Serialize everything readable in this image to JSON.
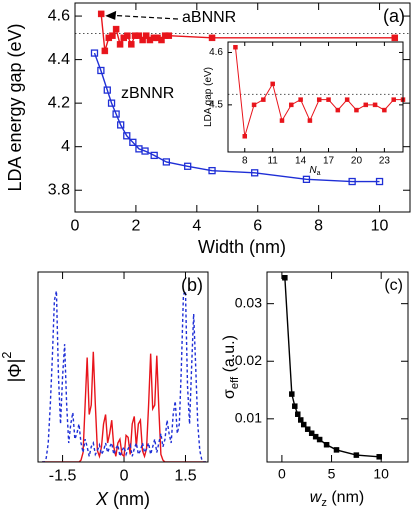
{
  "chart_data": [
    {
      "type": "line",
      "panel_label": "(a)",
      "x_label": [
        {
          "text": "Width (nm)"
        }
      ],
      "y_label": [
        {
          "text": "LDA energy gap (eV)"
        }
      ],
      "xlim": [
        0,
        11
      ],
      "ylim": [
        3.7,
        4.66
      ],
      "xticks": [
        0,
        2,
        4,
        6,
        8,
        10
      ],
      "yticks": [
        3.8,
        {
          "value": 4,
          "label": "4"
        },
        4.2,
        4.4,
        4.6
      ],
      "reference_line": 4.52,
      "annotations": [
        "aBNNR",
        "zBNNR"
      ],
      "series": [
        {
          "name": "aBNNR",
          "color": "#e8141b",
          "marker": "square",
          "x": [
            0.86,
            0.98,
            1.11,
            1.23,
            1.35,
            1.48,
            1.6,
            1.72,
            1.85,
            1.97,
            2.1,
            2.22,
            2.34,
            2.46,
            2.59,
            2.71,
            2.84,
            2.96,
            3.08,
            4.5,
            10.5
          ],
          "values": [
            4.61,
            4.44,
            4.5,
            4.51,
            4.54,
            4.47,
            4.5,
            4.51,
            4.47,
            4.51,
            4.51,
            4.49,
            4.51,
            4.49,
            4.5,
            4.5,
            4.49,
            4.51,
            4.51,
            4.5,
            4.5
          ]
        },
        {
          "name": "zBNNR",
          "color": "#1f2fd6",
          "marker": "square-open",
          "x": [
            0.64,
            0.85,
            1.06,
            1.2,
            1.35,
            1.5,
            1.7,
            1.9,
            2.1,
            2.3,
            2.6,
            3.0,
            3.7,
            4.5,
            5.9,
            7.6,
            9.1,
            10.0
          ],
          "values": [
            4.43,
            4.35,
            4.26,
            4.2,
            4.15,
            4.1,
            4.05,
            4.02,
            3.99,
            3.98,
            3.96,
            3.93,
            3.91,
            3.89,
            3.88,
            3.85,
            3.84,
            3.84
          ]
        }
      ]
    },
    {
      "type": "line",
      "x_label": [
        {
          "text": "N",
          "style": "italic"
        },
        {
          "text": "a",
          "style": "sub"
        }
      ],
      "y_label": [
        {
          "text": "LDA gap (eV)"
        }
      ],
      "xlim": [
        6.2,
        25
      ],
      "ylim": [
        4.41,
        4.62
      ],
      "xticks": [
        8,
        11,
        14,
        17,
        20,
        23
      ],
      "yticks": [
        4.5,
        4.6
      ],
      "reference_line": 4.52,
      "series": [
        {
          "name": "aBNNR",
          "color": "#e8141b",
          "marker": "square",
          "x": [
            7,
            8,
            9,
            10,
            11,
            12,
            13,
            14,
            15,
            16,
            17,
            18,
            19,
            20,
            21,
            22,
            23,
            24,
            25
          ],
          "values": [
            4.61,
            4.44,
            4.5,
            4.51,
            4.54,
            4.47,
            4.5,
            4.51,
            4.47,
            4.51,
            4.51,
            4.49,
            4.51,
            4.49,
            4.5,
            4.5,
            4.49,
            4.51,
            4.51
          ]
        }
      ]
    },
    {
      "type": "line",
      "panel_label": "(b)",
      "x_label": [
        {
          "text": "X",
          "style": "italic"
        },
        {
          "text": " (nm)"
        }
      ],
      "y_label": [
        {
          "text": "|Φ|"
        },
        {
          "text": "2",
          "style": "sup"
        }
      ],
      "xlim": [
        -2.1,
        2.05
      ],
      "ylim": [
        0,
        1
      ],
      "xticks": [
        -1.5,
        0,
        1.5
      ],
      "yticks": [],
      "series": [
        {
          "color": "#e8141b",
          "marker": "none",
          "x": [
            -2.0,
            -1.95,
            -1.9,
            -1.85,
            -1.8,
            -1.75,
            -1.7,
            -1.65,
            -1.6,
            -1.55,
            -1.5,
            -1.45,
            -1.4,
            -1.35,
            -1.3,
            -1.25,
            -1.2,
            -1.15,
            -1.1,
            -1.05,
            -1.0,
            -0.95,
            -0.9,
            -0.85,
            -0.8,
            -0.75,
            -0.7,
            -0.65,
            -0.6,
            -0.55,
            -0.5,
            -0.45,
            -0.4,
            -0.35,
            -0.3,
            -0.25,
            -0.2,
            -0.15,
            -0.1,
            -0.05,
            0.0,
            0.05,
            0.1,
            0.15,
            0.2,
            0.25,
            0.3,
            0.35,
            0.4,
            0.45,
            0.5,
            0.55,
            0.6,
            0.65,
            0.7,
            0.75,
            0.8,
            0.85,
            0.9,
            0.95,
            1.0,
            1.05,
            1.1,
            1.15,
            1.2,
            1.25,
            1.3,
            1.35,
            1.4,
            1.45,
            1.5,
            1.55,
            1.6,
            1.65,
            1.7,
            1.75,
            1.8,
            1.85,
            1.9,
            1.95,
            2.0
          ],
          "values": [
            0,
            0,
            0,
            0,
            0,
            0,
            0,
            0,
            0,
            0,
            0,
            0,
            0,
            0,
            0,
            0,
            0,
            0,
            0,
            0.01,
            0.05,
            0.3,
            0.55,
            0.25,
            0.3,
            0.58,
            0.3,
            0.06,
            0.03,
            0.08,
            0.2,
            0.25,
            0.1,
            0.15,
            0.22,
            0.08,
            0.03,
            0.1,
            0.12,
            0.04,
            0.03,
            0.14,
            0.13,
            0.04,
            0.2,
            0.24,
            0.08,
            0.2,
            0.22,
            0.06,
            0.03,
            0.07,
            0.3,
            0.57,
            0.28,
            0.3,
            0.56,
            0.28,
            0.04,
            0.01,
            0,
            0,
            0,
            0,
            0,
            0,
            0,
            0,
            0,
            0,
            0,
            0,
            0,
            0,
            0,
            0,
            0,
            0,
            0,
            0,
            0
          ]
        },
        {
          "color": "#1f2fd6",
          "marker": "none",
          "dashed": true,
          "x": [
            -2.0,
            -1.95,
            -1.9,
            -1.85,
            -1.8,
            -1.75,
            -1.7,
            -1.65,
            -1.6,
            -1.55,
            -1.5,
            -1.45,
            -1.4,
            -1.35,
            -1.3,
            -1.25,
            -1.2,
            -1.15,
            -1.1,
            -1.05,
            -1.0,
            -0.95,
            -0.9,
            -0.85,
            -0.8,
            -0.75,
            -0.7,
            -0.65,
            -0.6,
            -0.55,
            -0.5,
            -0.45,
            -0.4,
            -0.35,
            -0.3,
            -0.25,
            -0.2,
            -0.15,
            -0.1,
            -0.05,
            0.0,
            0.05,
            0.1,
            0.15,
            0.2,
            0.25,
            0.3,
            0.35,
            0.4,
            0.45,
            0.5,
            0.55,
            0.6,
            0.65,
            0.7,
            0.75,
            0.8,
            0.85,
            0.9,
            0.95,
            1.0,
            1.05,
            1.1,
            1.15,
            1.2,
            1.25,
            1.3,
            1.35,
            1.4,
            1.45,
            1.5,
            1.55,
            1.6,
            1.65,
            1.7,
            1.75,
            1.8,
            1.85,
            1.9,
            1.95,
            2.0
          ],
          "values": [
            0,
            0,
            0.02,
            0.1,
            0.3,
            0.55,
            0.85,
            0.9,
            0.45,
            0.2,
            0.45,
            0.62,
            0.3,
            0.1,
            0.2,
            0.26,
            0.12,
            0.15,
            0.2,
            0.1,
            0.05,
            0.12,
            0.08,
            0.03,
            0.08,
            0.1,
            0.04,
            0.06,
            0.09,
            0.04,
            0.06,
            0.1,
            0.05,
            0.08,
            0.1,
            0.04,
            0.07,
            0.09,
            0.03,
            0.06,
            0.08,
            0.04,
            0.07,
            0.09,
            0.03,
            0.07,
            0.1,
            0.04,
            0.06,
            0.1,
            0.05,
            0.07,
            0.1,
            0.04,
            0.08,
            0.12,
            0.05,
            0.1,
            0.15,
            0.08,
            0.12,
            0.22,
            0.15,
            0.1,
            0.25,
            0.32,
            0.15,
            0.2,
            0.5,
            0.88,
            0.9,
            0.4,
            0.2,
            0.5,
            0.78,
            0.5,
            0.2,
            0.06,
            0.01,
            0,
            0
          ]
        }
      ]
    },
    {
      "type": "line",
      "panel_label": "(c)",
      "x_label": [
        {
          "text": "w",
          "style": "italic"
        },
        {
          "text": "z",
          "style": "sub"
        },
        {
          "text": " (nm)"
        }
      ],
      "y_label": [
        {
          "text": "σ"
        },
        {
          "text": "eff",
          "style": "sub"
        },
        {
          "text": " (a.u.)"
        }
      ],
      "xlim": [
        -1.5,
        12.7
      ],
      "ylim": [
        0.0025,
        0.0355
      ],
      "xticks": [
        0,
        5,
        10
      ],
      "yticks": [
        0.01,
        0.02,
        0.03
      ],
      "series": [
        {
          "color": "#000000",
          "marker": "square",
          "x": [
            0.3,
            1.0,
            1.3,
            1.6,
            1.9,
            2.2,
            2.6,
            3.0,
            3.4,
            3.8,
            4.5,
            5.5,
            7.5,
            9.8
          ],
          "values": [
            0.0345,
            0.0143,
            0.0122,
            0.0108,
            0.0098,
            0.009,
            0.0082,
            0.0075,
            0.0069,
            0.0064,
            0.0055,
            0.0046,
            0.0037,
            0.0034
          ]
        }
      ]
    }
  ]
}
